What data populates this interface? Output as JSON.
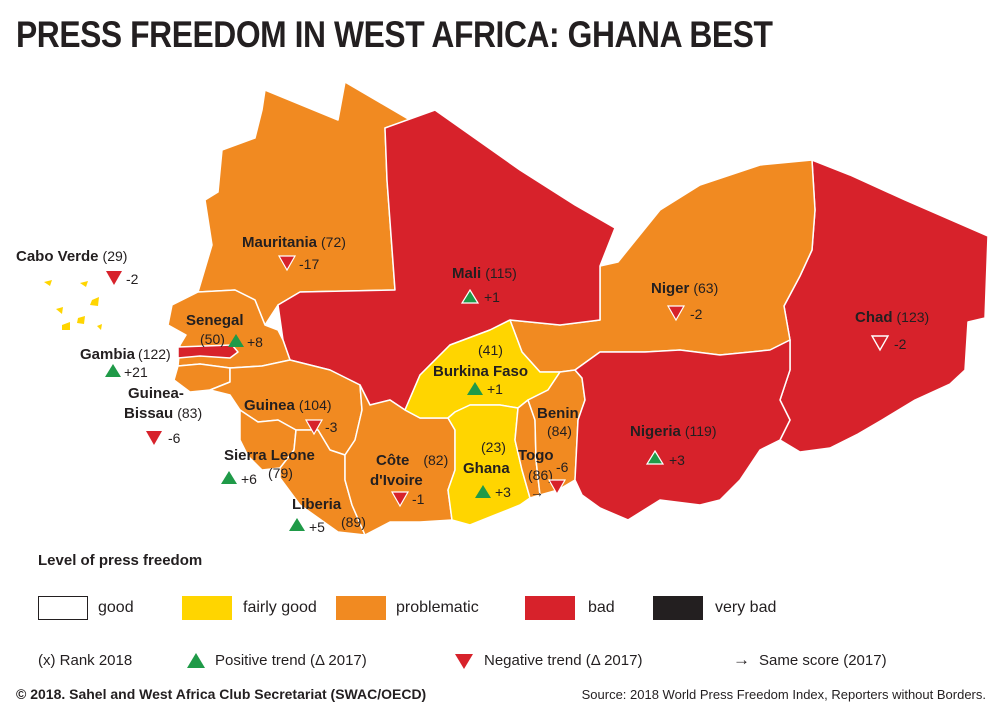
{
  "title": "PRESS FREEDOM IN WEST AFRICA: GHANA BEST",
  "colors": {
    "good": "#ffffff",
    "fairly_good": "#ffd500",
    "problematic": "#f18a21",
    "bad": "#d7222b",
    "very_bad": "#231f20",
    "positive": "#1f9a48",
    "negative": "#d7222b"
  },
  "countries": [
    {
      "name": "Cabo Verde",
      "rank": "(29)",
      "trend": "-2",
      "direction": "down",
      "level": "problematic"
    },
    {
      "name": "Mauritania",
      "rank": "(72)",
      "trend": "-17",
      "direction": "down",
      "level": "problematic"
    },
    {
      "name": "Mali",
      "rank": "(115)",
      "trend": "+1",
      "direction": "up",
      "level": "bad"
    },
    {
      "name": "Niger",
      "rank": "(63)",
      "trend": "-2",
      "direction": "down",
      "level": "problematic"
    },
    {
      "name": "Chad",
      "rank": "(123)",
      "trend": "-2",
      "direction": "down",
      "level": "bad"
    },
    {
      "name": "Senegal",
      "rank": "(50)",
      "trend": "+8",
      "direction": "up",
      "level": "problematic"
    },
    {
      "name": "Gambia",
      "rank": "(122)",
      "trend": "+21",
      "direction": "up",
      "level": "bad"
    },
    {
      "name": "Guinea-Bissau",
      "name_line1": "Guinea-",
      "name_line2": "Bissau",
      "rank": "(83)",
      "trend": "-6",
      "direction": "down",
      "level": "problematic"
    },
    {
      "name": "Guinea",
      "rank": "(104)",
      "trend": "-3",
      "direction": "down",
      "level": "problematic"
    },
    {
      "name": "Sierra Leone",
      "rank": "(79)",
      "trend": "+6",
      "direction": "up",
      "level": "problematic"
    },
    {
      "name": "Liberia",
      "rank": "(89)",
      "trend": "+5",
      "direction": "up",
      "level": "problematic"
    },
    {
      "name": "Côte d'Ivoire",
      "name_line1": "Côte",
      "name_line2": "d'Ivoire",
      "rank": "(82)",
      "trend": "-1",
      "direction": "down",
      "level": "problematic"
    },
    {
      "name": "Burkina Faso",
      "rank": "(41)",
      "trend": "+1",
      "direction": "up",
      "level": "fairly_good"
    },
    {
      "name": "Ghana",
      "rank": "(23)",
      "trend": "+3",
      "direction": "up",
      "level": "fairly_good"
    },
    {
      "name": "Togo",
      "rank": "(86)",
      "trend": "-6",
      "direction": "down",
      "level": "problematic"
    },
    {
      "name": "Benin",
      "rank": "(84)",
      "trend": "→",
      "direction": "same",
      "level": "problematic"
    },
    {
      "name": "Nigeria",
      "rank": "(119)",
      "trend": "+3",
      "direction": "up",
      "level": "bad"
    }
  ],
  "legend": {
    "title": "Level of press freedom",
    "levels": [
      {
        "label": "good",
        "color": "#ffffff"
      },
      {
        "label": "fairly good",
        "color": "#ffd500"
      },
      {
        "label": "problematic",
        "color": "#f18a21"
      },
      {
        "label": "bad",
        "color": "#d7222b"
      },
      {
        "label": "very bad",
        "color": "#231f20"
      }
    ],
    "rank_key": "(x)  Rank 2018",
    "positive": "Positive trend (Δ 2017)",
    "negative": "Negative trend (Δ 2017)",
    "same": "Same score (2017)"
  },
  "footer": {
    "copyright": "© 2018. Sahel and West Africa Club Secretariat (SWAC/OECD)",
    "source": "Source: 2018 World Press Freedom Index, Reporters without Borders."
  }
}
